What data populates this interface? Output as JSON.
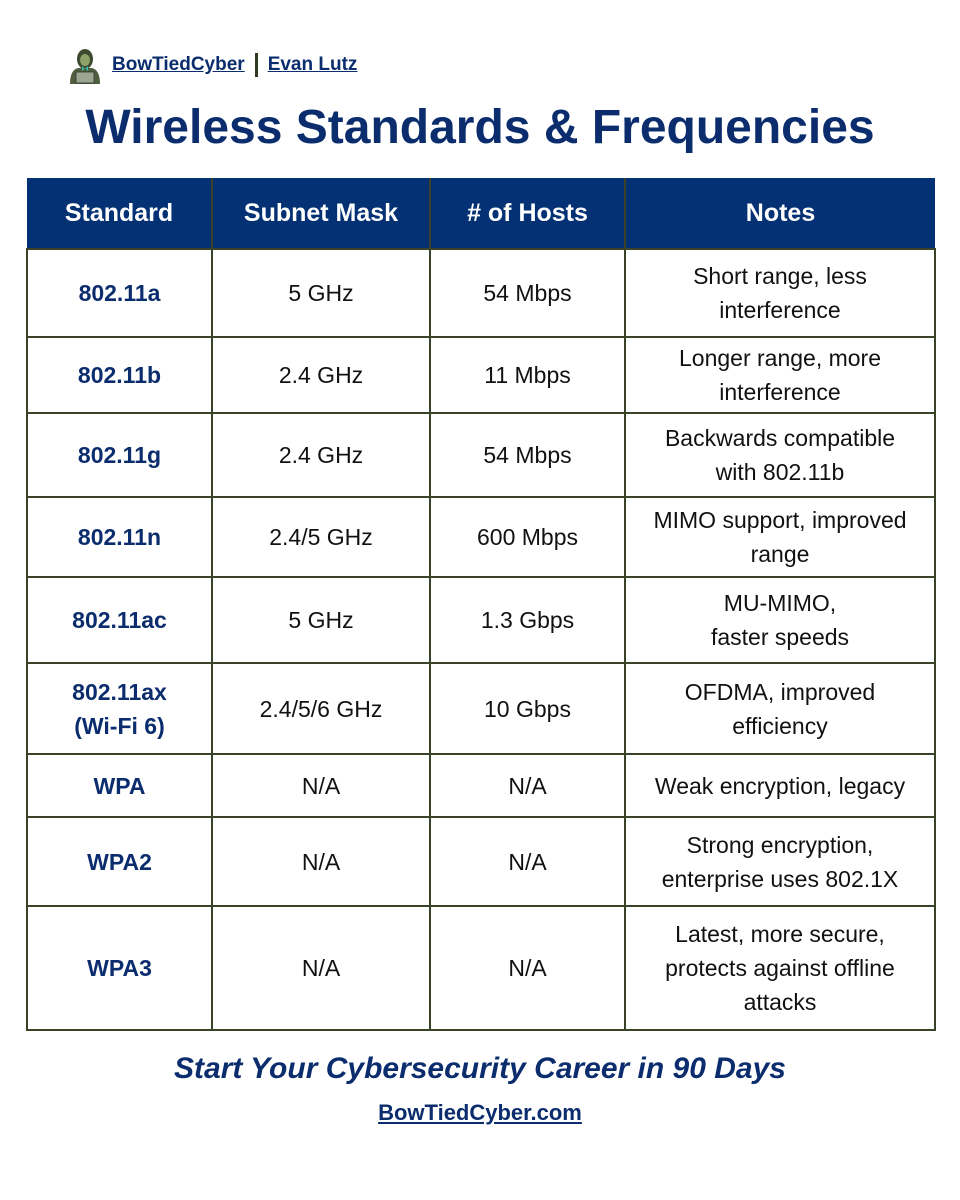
{
  "brand": {
    "name": "BowTiedCyber",
    "author": "Evan Lutz",
    "logo_icon": "hooded-figure-laptop-icon"
  },
  "title": "Wireless Standards & Frequencies",
  "table": {
    "headers": [
      "Standard",
      "Subnet Mask",
      "# of Hosts",
      "Notes"
    ],
    "rows": [
      {
        "standard": "802.11a",
        "band": "5 GHz",
        "speed": "54 Mbps",
        "notes": "Short range, less\ninterference"
      },
      {
        "standard": "802.11b",
        "band": "2.4 GHz",
        "speed": "11 Mbps",
        "notes": "Longer range, more\ninterference"
      },
      {
        "standard": "802.11g",
        "band": "2.4 GHz",
        "speed": "54 Mbps",
        "notes": "Backwards compatible\nwith 802.11b"
      },
      {
        "standard": "802.11n",
        "band": "2.4/5 GHz",
        "speed": "600 Mbps",
        "notes": "MIMO support, improved\nrange"
      },
      {
        "standard": "802.11ac",
        "band": "5 GHz",
        "speed": "1.3 Gbps",
        "notes": "MU-MIMO,\nfaster speeds"
      },
      {
        "standard": "802.11ax\n(Wi-Fi 6)",
        "band": "2.4/5/6 GHz",
        "speed": "10 Gbps",
        "notes": "OFDMA, improved\nefficiency"
      },
      {
        "standard": "WPA",
        "band": "N/A",
        "speed": "N/A",
        "notes": "Weak encryption, legacy"
      },
      {
        "standard": "WPA2",
        "band": "N/A",
        "speed": "N/A",
        "notes": "Strong encryption,\nenterprise uses 802.1X"
      },
      {
        "standard": "WPA3",
        "band": "N/A",
        "speed": "N/A",
        "notes": "Latest, more secure,\nprotects against offline\nattacks"
      }
    ]
  },
  "footer": {
    "tagline": "Start Your Cybersecurity Career in 90 Days",
    "website": "BowTiedCyber.com"
  },
  "colors": {
    "primary": "#043173",
    "border": "#3a4228"
  }
}
